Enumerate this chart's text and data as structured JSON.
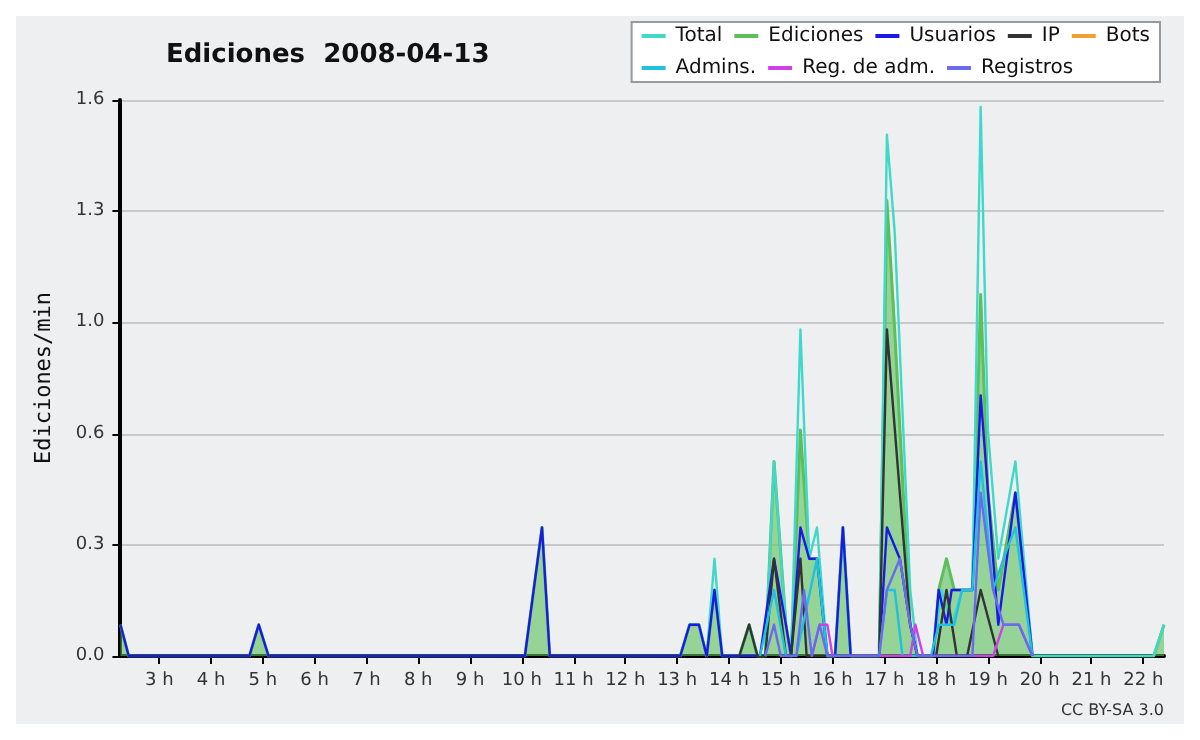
{
  "chart_data": {
    "type": "line",
    "title": "Ediciones  2008-04-13",
    "ylabel": "Ediciones/min",
    "annotations": [
      "CC BY-SA 3.0"
    ],
    "xlim": [
      2.25,
      22.4
    ],
    "ylim": [
      0,
      1.6
    ],
    "xticks": [
      {
        "value": 3,
        "label": "3 h"
      },
      {
        "value": 4,
        "label": "4 h"
      },
      {
        "value": 5,
        "label": "5 h"
      },
      {
        "value": 6,
        "label": "6 h"
      },
      {
        "value": 7,
        "label": "7 h"
      },
      {
        "value": 8,
        "label": "8 h"
      },
      {
        "value": 9,
        "label": "9 h"
      },
      {
        "value": 10,
        "label": "10 h"
      },
      {
        "value": 11,
        "label": "11 h"
      },
      {
        "value": 12,
        "label": "12 h"
      },
      {
        "value": 13,
        "label": "13 h"
      },
      {
        "value": 14,
        "label": "14 h"
      },
      {
        "value": 15,
        "label": "15 h"
      },
      {
        "value": 16,
        "label": "16 h"
      },
      {
        "value": 17,
        "label": "17 h"
      },
      {
        "value": 18,
        "label": "18 h"
      },
      {
        "value": 19,
        "label": "19 h"
      },
      {
        "value": 20,
        "label": "20 h"
      },
      {
        "value": 21,
        "label": "21 h"
      },
      {
        "value": 22,
        "label": "22 h"
      }
    ],
    "yticks": [
      {
        "value": 0,
        "label": "0.0"
      },
      {
        "value": 0.32,
        "label": "0.3"
      },
      {
        "value": 0.64,
        "label": "0.6"
      },
      {
        "value": 0.96,
        "label": "1.0"
      },
      {
        "value": 1.28,
        "label": "1.3"
      },
      {
        "value": 1.6,
        "label": "1.6"
      }
    ],
    "grid": "y",
    "legend": "top right",
    "marker": "none",
    "line_style": "solid",
    "series": [
      {
        "name": "Total",
        "color": "#40d8c8",
        "x": [
          13.06,
          13.24,
          13.42,
          13.57,
          13.72,
          13.87,
          14.2,
          14.39,
          14.55,
          14.7,
          14.87,
          15.1,
          15.2,
          15.38,
          15.55,
          15.7,
          15.9,
          16.05,
          16.2,
          16.35,
          16.9,
          17.05,
          17.2,
          17.5,
          17.64,
          17.94,
          18.1,
          18.3,
          18.5,
          18.7,
          18.86,
          19.0,
          19.2,
          19.53,
          19.86,
          22.2,
          22.4
        ],
        "values": [
          0,
          0.09,
          0.09,
          0,
          0.28,
          0,
          0,
          0.09,
          0,
          0,
          0.56,
          0.09,
          0,
          0.94,
          0.28,
          0.37,
          0,
          0,
          0.37,
          0,
          0,
          1.5,
          1.22,
          0.19,
          0,
          0,
          0.19,
          0.09,
          0.19,
          0.19,
          1.58,
          0.65,
          0.28,
          0.56,
          0,
          0,
          0.09
        ]
      },
      {
        "name": "Ediciones",
        "type": "area",
        "color": "#5cbf5c",
        "x": [
          2.25,
          2.41,
          4.74,
          4.92,
          5.11,
          10.06,
          10.39,
          10.54,
          13.06,
          13.24,
          13.42,
          13.57,
          13.72,
          13.87,
          14.2,
          14.39,
          14.55,
          14.7,
          14.87,
          15.1,
          15.2,
          15.38,
          15.55,
          15.7,
          15.9,
          16.05,
          16.2,
          16.35,
          16.9,
          17.05,
          17.2,
          17.5,
          17.64,
          17.94,
          18.05,
          18.2,
          18.35,
          18.7,
          18.86,
          19.0,
          19.2,
          19.53,
          19.86,
          22.2,
          22.4
        ],
        "values": [
          0.09,
          0,
          0,
          0.09,
          0,
          0,
          0.37,
          0,
          0,
          0.09,
          0.09,
          0,
          0.19,
          0,
          0,
          0.09,
          0,
          0,
          0.56,
          0.09,
          0,
          0.65,
          0.28,
          0.28,
          0,
          0,
          0.37,
          0,
          0,
          1.31,
          0.94,
          0.09,
          0,
          0,
          0.19,
          0.28,
          0.19,
          0.19,
          1.04,
          0.47,
          0.19,
          0.47,
          0,
          0,
          0.09
        ]
      },
      {
        "name": "Usuarios",
        "color": "#1a1ae6",
        "x": [
          2.25,
          2.41,
          4.74,
          4.92,
          5.11,
          10.06,
          10.39,
          10.54,
          13.06,
          13.24,
          13.42,
          13.57,
          13.72,
          13.87,
          14.6,
          14.87,
          15.1,
          15.2,
          15.38,
          15.55,
          15.7,
          15.9,
          16.05,
          16.2,
          16.35,
          16.9,
          17.05,
          17.3,
          17.5,
          17.64,
          17.94,
          18.05,
          18.2,
          18.3,
          18.7,
          18.86,
          19.1,
          19.2,
          19.53,
          19.86
        ],
        "values": [
          0.09,
          0,
          0,
          0.09,
          0,
          0,
          0.37,
          0,
          0,
          0.09,
          0.09,
          0,
          0.19,
          0,
          0,
          0.28,
          0.09,
          0,
          0.37,
          0.28,
          0.28,
          0,
          0,
          0.37,
          0,
          0,
          0.37,
          0.28,
          0.09,
          0,
          0,
          0.19,
          0.09,
          0.19,
          0.19,
          0.75,
          0.28,
          0.09,
          0.47,
          0
        ]
      },
      {
        "name": "IP",
        "color": "#333333",
        "x": [
          14.2,
          14.39,
          14.55,
          14.7,
          14.87,
          15.1,
          15.2,
          15.38,
          15.5,
          16.9,
          17.05,
          17.5,
          17.64,
          18.0,
          18.2,
          18.4,
          18.6,
          18.86,
          19.2
        ],
        "values": [
          0,
          0.09,
          0,
          0,
          0.28,
          0,
          0,
          0.28,
          0,
          0,
          0.94,
          0.09,
          0,
          0,
          0.19,
          0,
          0,
          0.19,
          0
        ]
      },
      {
        "name": "Bots",
        "color": "#f0a030"
      },
      {
        "name": "Admins.",
        "color": "#20c0e0",
        "x": [
          14.6,
          14.87,
          15.1,
          15.3,
          15.7,
          15.9,
          16.9,
          17.05,
          17.2,
          17.35,
          17.9,
          18.05,
          18.2,
          18.35,
          18.5,
          18.7,
          18.86,
          19.1,
          19.3,
          19.53,
          19.86
        ],
        "values": [
          0,
          0.19,
          0,
          0,
          0.28,
          0,
          0,
          0.19,
          0.19,
          0,
          0,
          0.09,
          0.09,
          0.09,
          0.19,
          0.19,
          0.56,
          0.19,
          0.28,
          0.37,
          0
        ]
      },
      {
        "name": "Reg. de adm.",
        "color": "#d040e8",
        "x": [
          15.6,
          15.75,
          15.9,
          16.0,
          17.5,
          17.6,
          17.75,
          19.1,
          19.3,
          19.6,
          19.86
        ],
        "values": [
          0,
          0.09,
          0.09,
          0,
          0,
          0.09,
          0,
          0,
          0.09,
          0.09,
          0
        ]
      },
      {
        "name": "Registros",
        "color": "#6a6af0",
        "x": [
          14.7,
          14.87,
          15.0,
          15.3,
          15.45,
          15.6,
          15.75,
          15.9,
          16.9,
          17.05,
          17.3,
          17.5,
          17.64,
          18.7,
          18.86,
          19.1,
          19.3,
          19.6,
          19.86
        ],
        "values": [
          0,
          0.09,
          0,
          0,
          0.19,
          0,
          0.09,
          0,
          0,
          0.19,
          0.28,
          0.09,
          0,
          0,
          0.47,
          0.19,
          0.09,
          0.09,
          0
        ]
      }
    ]
  }
}
